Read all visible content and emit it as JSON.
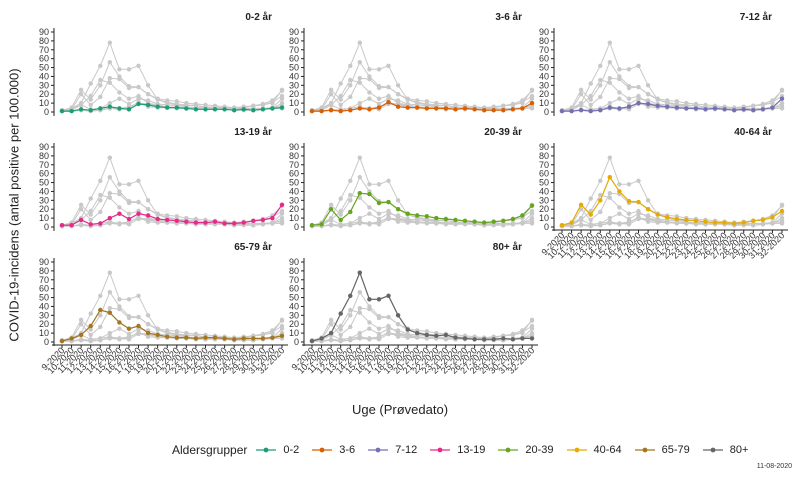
{
  "chart_data": {
    "type": "line",
    "ylabel": "COVID-19-incidens (antal positive per 100.000)",
    "xlabel": "Uge (Prøvedato)",
    "ylim": [
      0,
      90
    ],
    "y_ticks": [
      "0",
      "10",
      "20",
      "30",
      "40",
      "50",
      "60",
      "70",
      "80",
      "90"
    ],
    "x": [
      "9-2020",
      "10-2020",
      "11-2020",
      "12-2020",
      "13-2020",
      "14-2020",
      "15-2020",
      "16-2020",
      "17-2020",
      "18-2020",
      "19-2020",
      "20-2020",
      "21-2020",
      "22-2020",
      "23-2020",
      "24-2020",
      "25-2020",
      "26-2020",
      "27-2020",
      "28-2020",
      "29-2020",
      "30-2020",
      "31-2020",
      "32-2020"
    ],
    "x_tick_labels": [
      "9-2020",
      "10-2020",
      "11-2020",
      "12-2020",
      "13-2020",
      "14-2020",
      "15-2020",
      "16-2020",
      "17-2020",
      "18-2020",
      "19-2020",
      "20-2020",
      "21-2020",
      "22-2020",
      "23-2020",
      "24-2020",
      "25-2020",
      "26-2020",
      "27-2020",
      "28-2020",
      "29-2020",
      "30-2020",
      "31-2020",
      "32-2020"
    ],
    "background_color": "#c8c8c8",
    "legend_title": "Aldersgrupper",
    "legend_position": "bottom",
    "series": [
      {
        "name": "0-2",
        "panel_title": "0-2 år",
        "color": "#1b9e77",
        "values": [
          1,
          1,
          3,
          2,
          4,
          6,
          4,
          3,
          9,
          8,
          6,
          5,
          5,
          4,
          3,
          3,
          3,
          3,
          2,
          3,
          2,
          3,
          4,
          5
        ]
      },
      {
        "name": "3-6",
        "panel_title": "3-6 år",
        "color": "#d95f02",
        "values": [
          1,
          1,
          2,
          1,
          2,
          4,
          3,
          5,
          11,
          6,
          5,
          5,
          4,
          4,
          4,
          3,
          4,
          3,
          2,
          2,
          2,
          3,
          4,
          10
        ]
      },
      {
        "name": "7-12",
        "panel_title": "7-12 år",
        "color": "#7570b3",
        "values": [
          1,
          1,
          2,
          1,
          2,
          5,
          4,
          6,
          10,
          9,
          7,
          6,
          5,
          4,
          4,
          3,
          4,
          3,
          2,
          3,
          2,
          3,
          5,
          15
        ]
      },
      {
        "name": "13-19",
        "panel_title": "13-19 år",
        "color": "#e7298a",
        "values": [
          2,
          2,
          8,
          3,
          4,
          10,
          15,
          9,
          15,
          13,
          9,
          8,
          7,
          6,
          5,
          5,
          6,
          4,
          4,
          5,
          7,
          8,
          10,
          25
        ]
      },
      {
        "name": "20-39",
        "panel_title": "20-39 år",
        "color": "#66a61e",
        "values": [
          2,
          3,
          20,
          8,
          17,
          38,
          37,
          27,
          28,
          20,
          15,
          13,
          12,
          10,
          9,
          8,
          7,
          6,
          5,
          6,
          7,
          9,
          13,
          24
        ]
      },
      {
        "name": "40-64",
        "panel_title": "40-64 år",
        "color": "#e6ab02",
        "values": [
          2,
          5,
          25,
          14,
          30,
          56,
          40,
          29,
          28,
          20,
          14,
          11,
          9,
          8,
          7,
          6,
          5,
          5,
          4,
          5,
          7,
          8,
          11,
          18
        ]
      },
      {
        "name": "65-79",
        "panel_title": "65-79 år",
        "color": "#a6761d",
        "values": [
          1,
          4,
          8,
          18,
          36,
          33,
          22,
          15,
          18,
          10,
          8,
          6,
          5,
          5,
          4,
          5,
          5,
          4,
          3,
          4,
          4,
          4,
          5,
          7
        ]
      },
      {
        "name": "80+",
        "panel_title": "80+ år",
        "color": "#666666",
        "values": [
          1,
          4,
          10,
          32,
          52,
          78,
          48,
          48,
          52,
          30,
          14,
          10,
          8,
          7,
          8,
          5,
          4,
          3,
          3,
          3,
          4,
          3,
          4,
          4
        ]
      }
    ]
  },
  "footnote": "11-08-2020"
}
